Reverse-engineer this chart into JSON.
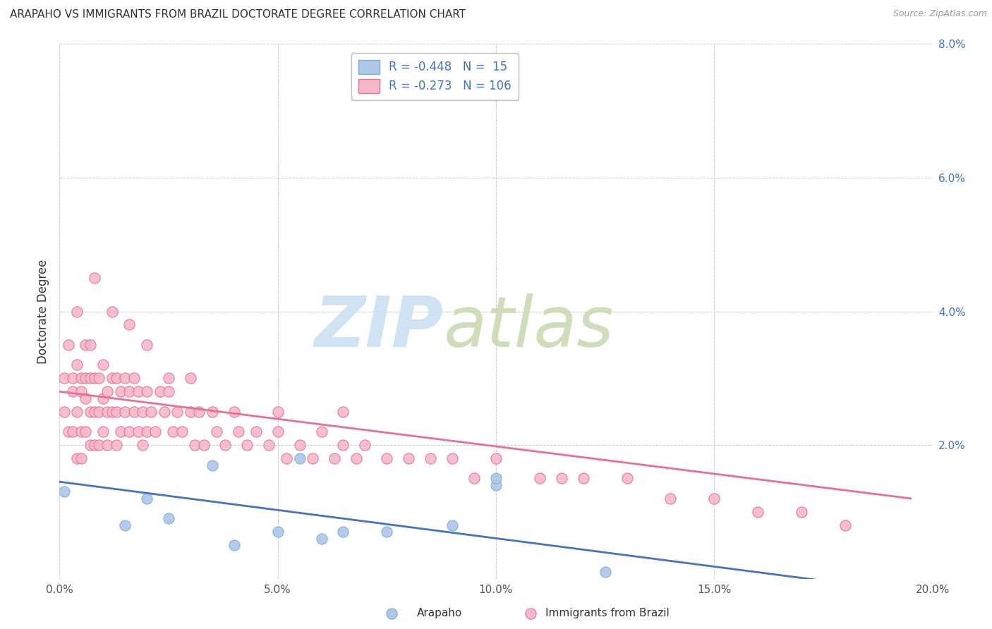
{
  "title": "ARAPAHO VS IMMIGRANTS FROM BRAZIL DOCTORATE DEGREE CORRELATION CHART",
  "source": "Source: ZipAtlas.com",
  "ylabel": "Doctorate Degree",
  "xlim": [
    0.0,
    0.2
  ],
  "ylim": [
    0.0,
    0.08
  ],
  "xticks": [
    0.0,
    0.05,
    0.1,
    0.15,
    0.2
  ],
  "yticks": [
    0.0,
    0.02,
    0.04,
    0.06,
    0.08
  ],
  "xtick_labels": [
    "0.0%",
    "5.0%",
    "10.0%",
    "15.0%",
    "20.0%"
  ],
  "ytick_labels": [
    "",
    "2.0%",
    "4.0%",
    "6.0%",
    "8.0%"
  ],
  "series1_name": "Arapaho",
  "series2_name": "Immigrants from Brazil",
  "series1_color": "#aec6e8",
  "series2_color": "#f4b8c8",
  "series1_edge": "#7aafd4",
  "series2_edge": "#e87090",
  "series1_line_color": "#4472C4",
  "series2_line_color": "#e87090",
  "background_color": "#ffffff",
  "grid_color": "#cccccc",
  "watermark_zip_color": "#c8dff0",
  "watermark_atlas_color": "#c8d8b0",
  "legend_label1": "R = -0.448   N =  15",
  "legend_label2": "R = -0.273   N = 106",
  "series1_x": [
    0.001,
    0.015,
    0.02,
    0.025,
    0.035,
    0.04,
    0.055,
    0.06,
    0.065,
    0.075,
    0.09,
    0.1,
    0.125,
    0.1,
    0.05
  ],
  "series1_y": [
    0.013,
    0.008,
    0.012,
    0.009,
    0.017,
    0.005,
    0.018,
    0.006,
    0.007,
    0.007,
    0.008,
    0.014,
    0.001,
    0.015,
    0.007
  ],
  "series2_x": [
    0.001,
    0.001,
    0.002,
    0.002,
    0.003,
    0.003,
    0.003,
    0.004,
    0.004,
    0.004,
    0.005,
    0.005,
    0.005,
    0.005,
    0.006,
    0.006,
    0.006,
    0.006,
    0.007,
    0.007,
    0.007,
    0.007,
    0.008,
    0.008,
    0.008,
    0.009,
    0.009,
    0.009,
    0.01,
    0.01,
    0.01,
    0.011,
    0.011,
    0.011,
    0.012,
    0.012,
    0.013,
    0.013,
    0.013,
    0.014,
    0.014,
    0.015,
    0.015,
    0.016,
    0.016,
    0.017,
    0.017,
    0.018,
    0.018,
    0.019,
    0.019,
    0.02,
    0.02,
    0.021,
    0.022,
    0.023,
    0.024,
    0.025,
    0.026,
    0.027,
    0.028,
    0.03,
    0.031,
    0.032,
    0.033,
    0.035,
    0.036,
    0.038,
    0.04,
    0.041,
    0.043,
    0.045,
    0.048,
    0.05,
    0.052,
    0.055,
    0.058,
    0.06,
    0.063,
    0.065,
    0.068,
    0.07,
    0.075,
    0.08,
    0.085,
    0.09,
    0.095,
    0.1,
    0.11,
    0.115,
    0.12,
    0.13,
    0.14,
    0.15,
    0.16,
    0.17,
    0.18,
    0.03,
    0.05,
    0.065,
    0.004,
    0.008,
    0.012,
    0.016,
    0.02,
    0.025
  ],
  "series2_y": [
    0.03,
    0.025,
    0.035,
    0.022,
    0.03,
    0.028,
    0.022,
    0.032,
    0.025,
    0.018,
    0.03,
    0.028,
    0.022,
    0.018,
    0.035,
    0.03,
    0.027,
    0.022,
    0.035,
    0.03,
    0.025,
    0.02,
    0.03,
    0.025,
    0.02,
    0.03,
    0.025,
    0.02,
    0.032,
    0.027,
    0.022,
    0.028,
    0.025,
    0.02,
    0.03,
    0.025,
    0.03,
    0.025,
    0.02,
    0.028,
    0.022,
    0.03,
    0.025,
    0.028,
    0.022,
    0.03,
    0.025,
    0.028,
    0.022,
    0.025,
    0.02,
    0.028,
    0.022,
    0.025,
    0.022,
    0.028,
    0.025,
    0.028,
    0.022,
    0.025,
    0.022,
    0.025,
    0.02,
    0.025,
    0.02,
    0.025,
    0.022,
    0.02,
    0.025,
    0.022,
    0.02,
    0.022,
    0.02,
    0.022,
    0.018,
    0.02,
    0.018,
    0.022,
    0.018,
    0.02,
    0.018,
    0.02,
    0.018,
    0.018,
    0.018,
    0.018,
    0.015,
    0.018,
    0.015,
    0.015,
    0.015,
    0.015,
    0.012,
    0.012,
    0.01,
    0.01,
    0.008,
    0.03,
    0.025,
    0.025,
    0.04,
    0.045,
    0.04,
    0.038,
    0.035,
    0.03
  ]
}
